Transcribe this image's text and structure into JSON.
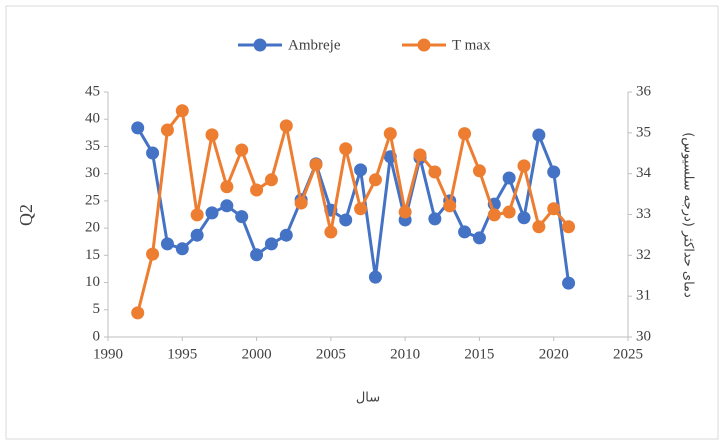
{
  "chart_data": {
    "type": "line",
    "xlabel": "سال",
    "ylabel": "Q2",
    "y2label": "دمای حداکثر (درجه سلسیوس)",
    "x": [
      1992,
      1993,
      1994,
      1995,
      1996,
      1997,
      1998,
      1999,
      2000,
      2001,
      2002,
      2003,
      2004,
      2005,
      2006,
      2007,
      2008,
      2009,
      2010,
      2011,
      2012,
      2013,
      2014,
      2015,
      2016,
      2017,
      2018,
      2019,
      2020,
      2021
    ],
    "series": [
      {
        "name": "Ambreje",
        "color": "#4472c4",
        "values": [
          38.4,
          33.8,
          17.1,
          16.2,
          18.7,
          22.8,
          24.1,
          22.1,
          15.1,
          17.1,
          18.7,
          25.2,
          31.8,
          23.3,
          21.5,
          30.7,
          11.0,
          33.1,
          21.5,
          32.9,
          21.7,
          25.0,
          19.3,
          18.2,
          24.4,
          29.2,
          21.9,
          37.1,
          30.3,
          9.9
        ]
      },
      {
        "name": "T max",
        "color": "#ed7d31",
        "axis": "y2",
        "values": [
          30.59,
          32.03,
          35.07,
          35.54,
          32.99,
          34.95,
          33.68,
          34.58,
          33.6,
          33.85,
          35.17,
          33.28,
          34.22,
          32.57,
          34.61,
          33.14,
          33.85,
          34.98,
          33.06,
          34.46,
          34.04,
          33.21,
          34.98,
          34.07,
          32.99,
          33.06,
          34.19,
          32.7,
          33.14,
          32.7
        ]
      }
    ],
    "xlim": [
      1990,
      2025
    ],
    "xticks": [
      1990,
      1995,
      2000,
      2005,
      2010,
      2015,
      2020,
      2025
    ],
    "ylim": [
      0,
      45
    ],
    "yticks": [
      0,
      5,
      10,
      15,
      20,
      25,
      30,
      35,
      40,
      45
    ],
    "y2lim": [
      30,
      36
    ],
    "y2ticks": [
      30,
      31,
      32,
      33,
      34,
      35,
      36
    ],
    "grid": false,
    "legend": "top"
  }
}
